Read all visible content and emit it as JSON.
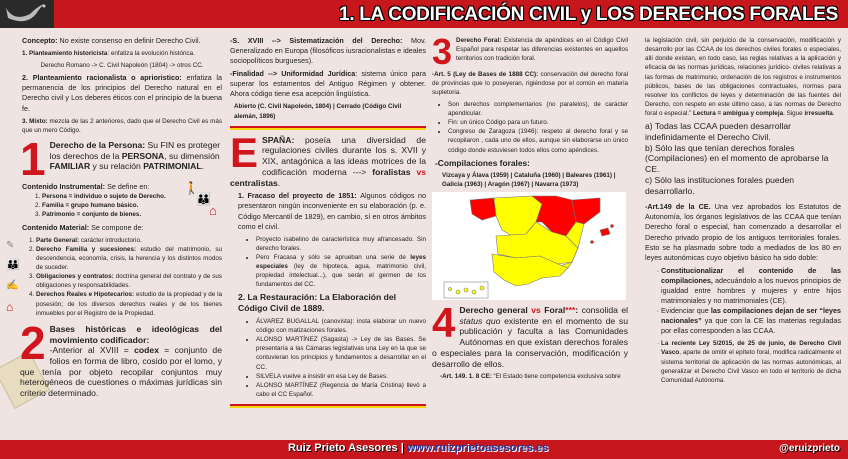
{
  "header": {
    "title": "1. LA CODIFICACIÓN CIVIL y LOS DERECHOS FORALES"
  },
  "footer": {
    "brand": "Ruiz Prieto Asesores",
    "separator": " | ",
    "url": "www.ruizprietoasesores.es",
    "handle": "@eruizprieto"
  },
  "colors": {
    "accent": "#c8161d",
    "yellow": "#f5d90a",
    "background": "#efe4e1"
  },
  "col1": {
    "concepto": [
      {
        "s": "b",
        "t": "Concepto: "
      },
      {
        "s": "n",
        "t": "No existe consenso en definir Derecho Civil."
      }
    ],
    "p1": [
      {
        "s": "b",
        "t": "1. Planteamiento historicista"
      },
      {
        "s": "n",
        "t": ": enfatiza la evolución histórica."
      }
    ],
    "p1sub": [
      {
        "s": "n",
        "t": "Derecho Romano -> C. Civil Napoleón (1804) -> otros CC."
      }
    ],
    "p2": [
      {
        "s": "b",
        "t": "2. Planteamiento racionalista o aprioristico: "
      },
      {
        "s": "n",
        "t": "enfatiza la permanencia de los principios del Derecho natural en el Derecho civil y Los deberes éticos con el principio de la buena fe."
      }
    ],
    "p3": [
      {
        "s": "b",
        "t": "3. Mixto: "
      },
      {
        "s": "n",
        "t": "mezcla de las 2 anteriores, dado que el Derecho Civil es más que un mero Código."
      }
    ],
    "n1": "1",
    "persona": [
      {
        "s": "b",
        "t": "Derecho de la Persona: "
      },
      {
        "s": "n",
        "t": "Su FIN es proteger los derechos de la "
      },
      {
        "s": "b",
        "t": "PERSONA"
      },
      {
        "s": "n",
        "t": ", su dimensión "
      },
      {
        "s": "b",
        "t": "FAMILIAR"
      },
      {
        "s": "n",
        "t": " y su relación "
      },
      {
        "s": "b",
        "t": "PATRIMONIAL"
      },
      {
        "s": "n",
        "t": "."
      }
    ],
    "instr_head": [
      {
        "s": "b",
        "t": "Contenido Instrumental: "
      },
      {
        "s": "n",
        "t": "Se define en:"
      }
    ],
    "instr": [
      [
        {
          "s": "b",
          "t": "Persona = individuo o sujeto de Derecho."
        }
      ],
      [
        {
          "s": "b",
          "t": "Familia = grupo humano básico."
        }
      ],
      [
        {
          "s": "b",
          "t": "Patrimonio = conjunto de bienes."
        }
      ]
    ],
    "mat_head": [
      {
        "s": "b",
        "t": "Contenido Material: "
      },
      {
        "s": "n",
        "t": "Se compone de:"
      }
    ],
    "mat": [
      [
        {
          "s": "b",
          "t": "Parte General: "
        },
        {
          "s": "n",
          "t": "carácter introductorio."
        }
      ],
      [
        {
          "s": "b",
          "t": "Derecho Familia y sucesiones: "
        },
        {
          "s": "n",
          "t": "estudio del matrimonio, su descendencia, economía, crisis, la herencia y los distintos modos de suceder."
        }
      ],
      [
        {
          "s": "b",
          "t": "Obligaciones y contratos: "
        },
        {
          "s": "n",
          "t": "doctrina general del contrato y de sus obligaciones y responsabilidades."
        }
      ],
      [
        {
          "s": "b",
          "t": "Derechos Reales e Hipotecarios: "
        },
        {
          "s": "n",
          "t": "estudio de la propiedad y de la posesión; de los diversos derechos reales y de los bienes inmuebles por el Registro de la Propiedad."
        }
      ]
    ],
    "n2": "2",
    "bases": [
      {
        "s": "b",
        "t": "Bases históricas e ideológicas del movimiento codificador:"
      }
    ],
    "codex": [
      {
        "s": "n",
        "t": "-Anterior al XVIII = "
      },
      {
        "s": "b",
        "t": "codex"
      },
      {
        "s": "n",
        "t": " = conjunto de folios en forma de libro, cosido por el lomo, y que tenía por objeto recopilar conjuntos muy heterogéneos de cuestiones o máximas jurídicas sin criterio determinado."
      }
    ]
  },
  "col2": {
    "sxviii": [
      {
        "s": "b",
        "t": "-S. XVIII --> Sistematización del Derecho: "
      },
      {
        "s": "n",
        "t": "Mov. Generalizado en Europa (filosóficos iusracionalistas e ideales sociopolíticos burgueses)."
      }
    ],
    "finalidad": [
      {
        "s": "b",
        "t": "-Finalidad --> Uniformidad Jurídica"
      },
      {
        "s": "n",
        "t": ": sistema único para superar los estamentos del Antiguo Régimen y obtener. Ahora código tiene esa acepción lingüística."
      }
    ],
    "abierto": [
      {
        "s": "b",
        "t": "Abierto (C. Civil Napoleón, 1804) | Cerrado (Código Civil alemán, 1896)"
      }
    ],
    "bigE": "E",
    "espana": [
      {
        "s": "b",
        "t": "SPAÑA: "
      },
      {
        "s": "n",
        "t": "poseía una diversidad de regulaciones civiles durante los s. XVII y XIX, antagónica a las ideas motrices de la codificación moderna ---> "
      },
      {
        "s": "b",
        "t": "foralistas "
      },
      {
        "s": "r",
        "t": "vs"
      },
      {
        "s": "b",
        "t": " centralistas"
      },
      {
        "s": "n",
        "t": "."
      }
    ],
    "fracaso_head": [
      {
        "s": "b",
        "t": "1.  Fracaso del proyecto de 1851: "
      },
      {
        "s": "n",
        "t": "Algunos códigos no presentaron ningún inconveniente en su elaboración (p. e. Código Mercantil de 1829), en cambio, sí en otros ámbitos como el civil."
      }
    ],
    "fracaso": [
      [
        {
          "s": "n",
          "t": "Proyecto isabelino de característica muy afrancesado. Sin derecho forales."
        }
      ],
      [
        {
          "s": "n",
          "t": "Pero Fracasa y sólo se aprueban una serie de "
        },
        {
          "s": "b",
          "t": "leyes especiales"
        },
        {
          "s": "n",
          "t": " (ley de hipoteca, agua, matrimonio civil, propiedad intelectual...), que serán el germen de los fundamentos del CC."
        }
      ]
    ],
    "rest_head": [
      {
        "s": "b",
        "t": "2.  La Restauración: La Elaboración del Código Civil de 1889."
      }
    ],
    "rest": [
      [
        {
          "s": "n",
          "t": "ÁLVAREZ BUGALLAL (canovista): insta elaborar un nuevo código con matizaciones forales."
        }
      ],
      [
        {
          "s": "n",
          "t": "ALONSO MARTÍNEZ (Sagasta) -> Ley de las Bases. Se presentaría a las Cámaras legislativas una Ley en la que se contuvieran los principios y fundamentos a desarrollar en el CC."
        }
      ],
      [
        {
          "s": "n",
          "t": "SILVELA vuelve a insistir en esa Ley de Bases."
        }
      ],
      [
        {
          "s": "n",
          "t": "ALONSO MARTÍNEZ (Regencia de María Cristina) llevó a cabo el CC Español."
        }
      ]
    ]
  },
  "col3": {
    "n3": "3",
    "foral": [
      {
        "s": "b",
        "t": "Derecho Foral: "
      },
      {
        "s": "n",
        "t": "Existencia de apéndices en el Código Civil Español para respetar las diferencias existentes en aquellos territorios con tradición foral."
      }
    ],
    "art5": [
      {
        "s": "b",
        "t": "-Art. 5 (Ley de Bases de 1888 CC): "
      },
      {
        "s": "n",
        "t": "conservación del derecho foral de provincias que lo poseyeran, rigiéndose por el común en materia supletoria."
      }
    ],
    "art5_list": [
      [
        {
          "s": "n",
          "t": "Son derechos complementarios (no paralelos), de carácter apendicular."
        }
      ],
      [
        {
          "s": "n",
          "t": "Fin: un único Código para un futuro."
        }
      ],
      [
        {
          "s": "n",
          "t": "Congreso de Zaragoza (1946): respeto al derecho foral y se recopilaron , cada uno de ellos, aunque sin elaborarse un único código donde estuviesen todos ellos como apéndices."
        }
      ]
    ],
    "comp_head": "-Compilaciones forales:",
    "comp": [
      {
        "s": "b",
        "t": "Vizcaya y Álava (1959) | Cataluña (1960) | Baleares (1961) | Galicia (1963) | Aragón (1967)  | Navarra (1973)"
      }
    ],
    "map": {
      "foral_color": "#ff0000",
      "other_color": "#ffff00"
    },
    "n4": "4",
    "general": [
      {
        "s": "b",
        "t": "Derecho general "
      },
      {
        "s": "r",
        "t": "vs"
      },
      {
        "s": "b",
        "t": " Foral"
      },
      {
        "s": "r",
        "t": "***"
      },
      {
        "s": "b",
        "t": ": "
      },
      {
        "s": "n",
        "t": "consolida el "
      },
      {
        "s": "i",
        "t": "status quo"
      },
      {
        "s": "n",
        "t": " existente en el momento de su publicación y faculta a las Comunidades Autónomas en que existan derechos forales o especiales para la conservación, modificación y desarrollo de ellos."
      }
    ],
    "art149": [
      {
        "s": "b",
        "t": "-Art. 149. 1. 8 CE: "
      },
      {
        "s": "n",
        "t": "“El Estado tiene competencia exclusiva sobre"
      }
    ]
  },
  "col4": {
    "quote": [
      {
        "s": "n",
        "t": "la legislación civil, sin perjuicio de la conservación, modificación y desarrollo por las CCAA de los derechos civiles forales o especiales, allí donde existan, en todo caso, las reglas relativas a la aplicación y eficacia de las normas jurídicas, relaciones jurídico- civiles relativas a las formas de matrimonio, ordenación de los registros e instrumentos públicos, bases de las obligaciones contractuales, normas para resolver los conflictos de leyes y determinación de las fuentes del Derecho, con respeto en este último caso, a las normas de Derecho foral o especial.” "
      },
      {
        "s": "b",
        "t": "Lectura = ambigua y compleja"
      },
      {
        "s": "n",
        "t": ". Sigue "
      },
      {
        "s": "b",
        "t": "irresuelta"
      },
      {
        "s": "n",
        "t": "."
      }
    ],
    "opts": [
      [
        {
          "s": "n",
          "t": "a) Todas las CCAA pueden desarrollar indefinidamente el Derecho Civil."
        }
      ],
      [
        {
          "s": "n",
          "t": "b) Sólo las que tenían derechos forales (Compilaciones) en el momento de aprobarse la CE."
        }
      ],
      [
        {
          "s": "n",
          "t": "c) Sólo las instituciones forales pueden desarrollarlo."
        }
      ]
    ],
    "art149ce": [
      {
        "s": "b",
        "t": "-Art.149 de la CE. "
      },
      {
        "s": "n",
        "t": "Una vez aprobados los Estatutos de Autonomía, los órganos legislativos de las CCAA que tenían Derecho foral o especial, han comenzado a desarrollar el Derecho privado propio de los antiguos territoriales forales. Esto se ha plasmado sobre todo a mediados de los 80 en leyes autonómicas cuyo objetivo básico ha sido doble:"
      }
    ],
    "goals": [
      [
        {
          "s": "b",
          "t": "Constitucionalizar el contenido de las compilaciones,"
        },
        {
          "s": "n",
          "t": " adecuándolo a los nuevos principios de igualdad entre hombres y mujeres y entre hijos matrimoniales y no matrimoniales (CE)."
        }
      ],
      [
        {
          "s": "n",
          "t": "Evidenciar que "
        },
        {
          "s": "b",
          "t": "las compilaciones dejan de ser “leyes nacionales”"
        },
        {
          "s": "n",
          "t": " ya que con la CE las materias reguladas por ellas corresponden a las CCAA."
        }
      ]
    ],
    "vasco": [
      {
        "s": "b",
        "t": "La reciente Ley 5/2015, de 25 de junio, de Derecho Civil Vasco"
      },
      {
        "s": "n",
        "t": ", aparte de omitir el epíteto foral, modifica radicalmente el sistema territorial de aplicación de las normas autonómicas, al generalizar el Derecho Civil Vasco en todo el territorio de dicha Comunidad Autónoma."
      }
    ]
  }
}
